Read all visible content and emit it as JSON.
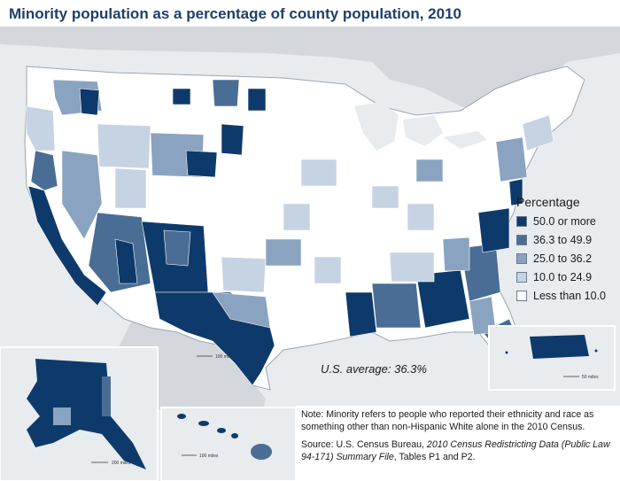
{
  "title": "Minority population as a percentage of county population, 2010",
  "legend": {
    "title": "Percentage",
    "items": [
      {
        "label": "50.0 or more",
        "color": "#0e3a6b"
      },
      {
        "label": "36.3 to 49.9",
        "color": "#4a6d95"
      },
      {
        "label": "25.0 to 36.2",
        "color": "#8aa3c0"
      },
      {
        "label": "10.0 to 24.9",
        "color": "#c6d3e3"
      },
      {
        "label": "Less than 10.0",
        "color": "#ffffff"
      }
    ]
  },
  "average": "U.S. average: 36.3%",
  "note": "Note: Minority refers to people who reported their ethnicity and race as something other than non-Hispanic White alone in the 2010 Census.",
  "source": {
    "prefix": "Source: U.S. Census Bureau, ",
    "italic": "2010 Census Redistricting Data (Public Law 94-171) Summary File",
    "suffix": ", Tables P1 and P2."
  },
  "scales": {
    "main": "100 miles",
    "alaska": "200 miles",
    "hawaii": "100 miles",
    "puerto_rico": "50 miles"
  },
  "colors": {
    "land_other": "#d4d8dc",
    "water": "#e8ecef",
    "border": "#ffffff"
  }
}
